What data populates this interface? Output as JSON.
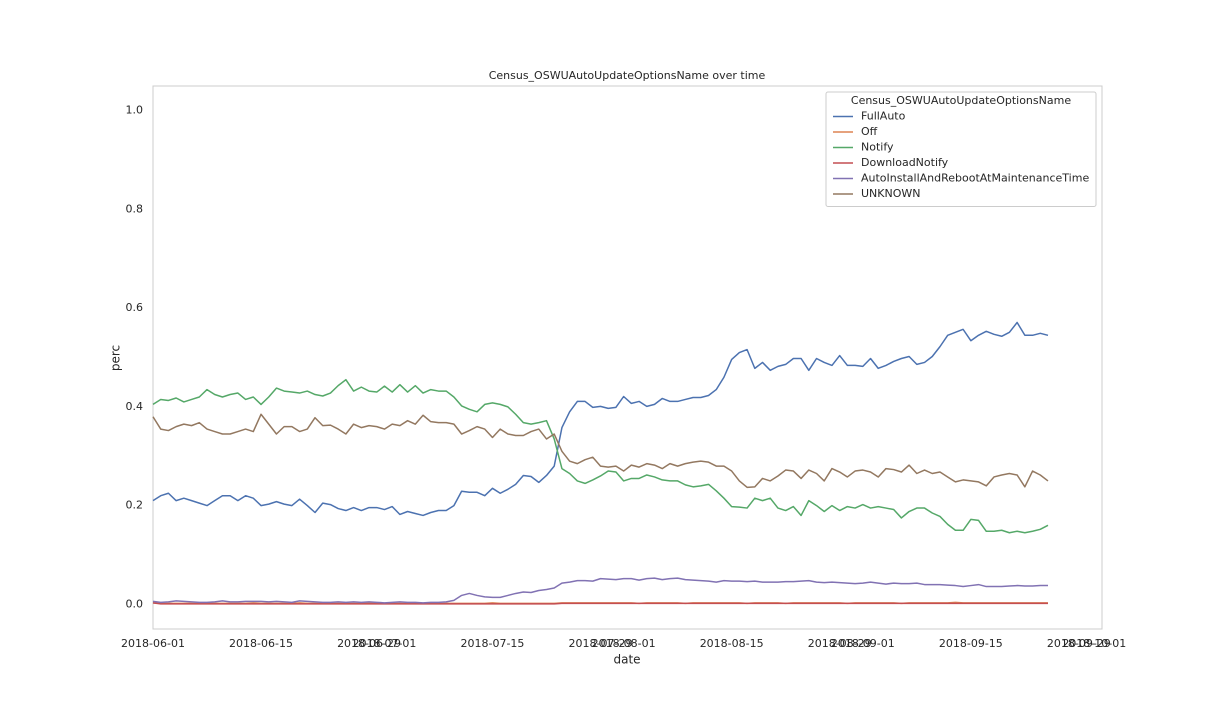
{
  "chart_data": {
    "type": "line",
    "title": "Census_OSWUAutoUpdateOptionsName over time",
    "x_label": "date",
    "y_label": "perc",
    "legend_title": "Census_OSWUAutoUpdateOptionsName",
    "legend_position": "upper right",
    "grid": false,
    "xlim": [
      "2018-06-01",
      "2018-10-02"
    ],
    "xticks": [
      "2018-06-01",
      "2018-06-15",
      "2018-06-29",
      "2018-07-01",
      "2018-07-15",
      "2018-07-29",
      "2018-08-01",
      "2018-08-15",
      "2018-08-29",
      "2018-09-01",
      "2018-09-15",
      "2018-09-29",
      "2018-10-01"
    ],
    "ylim": [
      -0.05,
      1.05
    ],
    "yticks": [
      {
        "value": 0,
        "label": "0.0"
      },
      0.2,
      0.4,
      0.6,
      0.8,
      {
        "value": 1,
        "label": "1.0"
      }
    ],
    "x": [
      "2018-06-01",
      "2018-06-02",
      "2018-06-03",
      "2018-06-04",
      "2018-06-05",
      "2018-06-06",
      "2018-06-07",
      "2018-06-08",
      "2018-06-09",
      "2018-06-10",
      "2018-06-11",
      "2018-06-12",
      "2018-06-13",
      "2018-06-14",
      "2018-06-15",
      "2018-06-16",
      "2018-06-17",
      "2018-06-18",
      "2018-06-19",
      "2018-06-20",
      "2018-06-21",
      "2018-06-22",
      "2018-06-23",
      "2018-06-24",
      "2018-06-25",
      "2018-06-26",
      "2018-06-27",
      "2018-06-28",
      "2018-06-29",
      "2018-06-30",
      "2018-07-01",
      "2018-07-02",
      "2018-07-03",
      "2018-07-04",
      "2018-07-05",
      "2018-07-06",
      "2018-07-07",
      "2018-07-08",
      "2018-07-09",
      "2018-07-10",
      "2018-07-11",
      "2018-07-12",
      "2018-07-13",
      "2018-07-14",
      "2018-07-15",
      "2018-07-16",
      "2018-07-17",
      "2018-07-18",
      "2018-07-19",
      "2018-07-20",
      "2018-07-21",
      "2018-07-22",
      "2018-07-23",
      "2018-07-24",
      "2018-07-25",
      "2018-07-26",
      "2018-07-27",
      "2018-07-28",
      "2018-07-29",
      "2018-07-30",
      "2018-07-31",
      "2018-08-01",
      "2018-08-02",
      "2018-08-03",
      "2018-08-04",
      "2018-08-05",
      "2018-08-06",
      "2018-08-07",
      "2018-08-08",
      "2018-08-09",
      "2018-08-10",
      "2018-08-11",
      "2018-08-12",
      "2018-08-13",
      "2018-08-14",
      "2018-08-15",
      "2018-08-16",
      "2018-08-17",
      "2018-08-18",
      "2018-08-19",
      "2018-08-20",
      "2018-08-21",
      "2018-08-22",
      "2018-08-23",
      "2018-08-24",
      "2018-08-25",
      "2018-08-26",
      "2018-08-27",
      "2018-08-28",
      "2018-08-29",
      "2018-08-30",
      "2018-08-31",
      "2018-09-01",
      "2018-09-02",
      "2018-09-03",
      "2018-09-04",
      "2018-09-05",
      "2018-09-06",
      "2018-09-07",
      "2018-09-08",
      "2018-09-09",
      "2018-09-10",
      "2018-09-11",
      "2018-09-12",
      "2018-09-13",
      "2018-09-14",
      "2018-09-15",
      "2018-09-16",
      "2018-09-17",
      "2018-09-18",
      "2018-09-19",
      "2018-09-20",
      "2018-09-21",
      "2018-09-22",
      "2018-09-23",
      "2018-09-24",
      "2018-09-25"
    ],
    "series": [
      {
        "name": "FullAuto",
        "color": "#4c72b0",
        "values": [
          0.21,
          0.22,
          0.225,
          0.21,
          0.215,
          0.21,
          0.205,
          0.2,
          0.21,
          0.22,
          0.22,
          0.21,
          0.22,
          0.215,
          0.2,
          0.203,
          0.208,
          0.203,
          0.2,
          0.213,
          0.2,
          0.186,
          0.205,
          0.202,
          0.194,
          0.19,
          0.196,
          0.19,
          0.196,
          0.196,
          0.192,
          0.198,
          0.182,
          0.188,
          0.184,
          0.18,
          0.186,
          0.19,
          0.19,
          0.2,
          0.229,
          0.227,
          0.227,
          0.22,
          0.235,
          0.225,
          0.233,
          0.243,
          0.261,
          0.259,
          0.247,
          0.261,
          0.28,
          0.358,
          0.39,
          0.411,
          0.411,
          0.399,
          0.401,
          0.397,
          0.399,
          0.421,
          0.407,
          0.411,
          0.401,
          0.405,
          0.417,
          0.411,
          0.411,
          0.415,
          0.419,
          0.419,
          0.423,
          0.435,
          0.46,
          0.496,
          0.51,
          0.516,
          0.478,
          0.49,
          0.474,
          0.482,
          0.486,
          0.498,
          0.498,
          0.474,
          0.498,
          0.49,
          0.484,
          0.504,
          0.484,
          0.484,
          0.482,
          0.498,
          0.478,
          0.484,
          0.492,
          0.498,
          0.502,
          0.486,
          0.49,
          0.502,
          0.522,
          0.545,
          0.551,
          0.557,
          0.534,
          0.545,
          0.553,
          0.547,
          0.543,
          0.551,
          0.571,
          0.545,
          0.545,
          0.549,
          0.545
        ]
      },
      {
        "name": "Off",
        "color": "#dd8452",
        "values": [
          0.003,
          0.002,
          0.002,
          0.002,
          0.002,
          0.002,
          0.002,
          0.003,
          0.002,
          0.002,
          0.002,
          0.002,
          0.002,
          0.003,
          0.002,
          0.002,
          0.002,
          0.002,
          0.002,
          0.003,
          0.002,
          0.002,
          0.002,
          0.002,
          0.002,
          0.002,
          0.002,
          0.002,
          0.003,
          0.002,
          0.002,
          0.002,
          0.002,
          0.002,
          0.002,
          0.002,
          0.002,
          0.002,
          0.002,
          0.002,
          0.002,
          0.002,
          0.002,
          0.002,
          0.003,
          0.002,
          0.002,
          0.002,
          0.002,
          0.002,
          0.002,
          0.002,
          0.002,
          0.003,
          0.003,
          0.003,
          0.003,
          0.003,
          0.003,
          0.003,
          0.003,
          0.003,
          0.003,
          0.002,
          0.003,
          0.003,
          0.003,
          0.003,
          0.003,
          0.002,
          0.003,
          0.003,
          0.003,
          0.003,
          0.003,
          0.003,
          0.003,
          0.002,
          0.003,
          0.003,
          0.003,
          0.003,
          0.002,
          0.003,
          0.003,
          0.003,
          0.003,
          0.003,
          0.003,
          0.003,
          0.002,
          0.003,
          0.003,
          0.003,
          0.003,
          0.003,
          0.003,
          0.002,
          0.003,
          0.003,
          0.003,
          0.003,
          0.003,
          0.003,
          0.004,
          0.003,
          0.003,
          0.003,
          0.003,
          0.003,
          0.003,
          0.003,
          0.003,
          0.003,
          0.003,
          0.003,
          0.003
        ]
      },
      {
        "name": "Notify",
        "color": "#55a868",
        "values": [
          0.405,
          0.415,
          0.413,
          0.418,
          0.41,
          0.415,
          0.42,
          0.435,
          0.425,
          0.42,
          0.425,
          0.428,
          0.415,
          0.42,
          0.405,
          0.42,
          0.438,
          0.432,
          0.43,
          0.428,
          0.432,
          0.425,
          0.422,
          0.428,
          0.443,
          0.455,
          0.432,
          0.44,
          0.432,
          0.43,
          0.442,
          0.43,
          0.445,
          0.43,
          0.443,
          0.428,
          0.435,
          0.432,
          0.432,
          0.42,
          0.402,
          0.395,
          0.39,
          0.405,
          0.408,
          0.405,
          0.4,
          0.385,
          0.368,
          0.365,
          0.368,
          0.372,
          0.335,
          0.275,
          0.265,
          0.25,
          0.245,
          0.252,
          0.26,
          0.27,
          0.268,
          0.25,
          0.255,
          0.255,
          0.262,
          0.258,
          0.252,
          0.25,
          0.25,
          0.242,
          0.238,
          0.24,
          0.243,
          0.23,
          0.215,
          0.198,
          0.197,
          0.195,
          0.215,
          0.21,
          0.215,
          0.195,
          0.19,
          0.198,
          0.18,
          0.21,
          0.2,
          0.188,
          0.2,
          0.19,
          0.198,
          0.195,
          0.202,
          0.195,
          0.198,
          0.195,
          0.192,
          0.175,
          0.188,
          0.195,
          0.195,
          0.185,
          0.178,
          0.162,
          0.15,
          0.15,
          0.172,
          0.17,
          0.148,
          0.148,
          0.15,
          0.145,
          0.148,
          0.145,
          0.148,
          0.152,
          0.16
        ]
      },
      {
        "name": "DownloadNotify",
        "color": "#c44e52",
        "values": [
          0.003,
          0.001,
          0.001,
          0.001,
          0.001,
          0.001,
          0.001,
          0.001,
          0.001,
          0.001,
          0.001,
          0.001,
          0.001,
          0.001,
          0.001,
          0.001,
          0.001,
          0.001,
          0.001,
          0.001,
          0.001,
          0.001,
          0.001,
          0.001,
          0.001,
          0.001,
          0.001,
          0.001,
          0.001,
          0.001,
          0.001,
          0.001,
          0.001,
          0.001,
          0.001,
          0.001,
          0.001,
          0.001,
          0.001,
          0.001,
          0.001,
          0.001,
          0.001,
          0.001,
          0.001,
          0.001,
          0.001,
          0.001,
          0.001,
          0.001,
          0.001,
          0.001,
          0.001,
          0.002,
          0.002,
          0.002,
          0.002,
          0.002,
          0.002,
          0.002,
          0.002,
          0.002,
          0.002,
          0.002,
          0.002,
          0.002,
          0.002,
          0.002,
          0.002,
          0.002,
          0.002,
          0.002,
          0.002,
          0.002,
          0.002,
          0.002,
          0.002,
          0.002,
          0.002,
          0.002,
          0.002,
          0.002,
          0.002,
          0.002,
          0.002,
          0.002,
          0.002,
          0.002,
          0.002,
          0.002,
          0.002,
          0.002,
          0.002,
          0.002,
          0.002,
          0.002,
          0.002,
          0.002,
          0.002,
          0.002,
          0.002,
          0.002,
          0.002,
          0.002,
          0.002,
          0.002,
          0.002,
          0.002,
          0.002,
          0.002,
          0.002,
          0.002,
          0.002,
          0.002,
          0.002,
          0.002,
          0.002
        ]
      },
      {
        "name": "AutoInstallAndRebootAtMaintenanceTime",
        "color": "#8172b3",
        "values": [
          0.006,
          0.004,
          0.005,
          0.007,
          0.006,
          0.005,
          0.004,
          0.004,
          0.005,
          0.007,
          0.005,
          0.005,
          0.006,
          0.006,
          0.006,
          0.005,
          0.006,
          0.005,
          0.004,
          0.007,
          0.006,
          0.005,
          0.004,
          0.004,
          0.005,
          0.004,
          0.005,
          0.004,
          0.005,
          0.004,
          0.003,
          0.004,
          0.005,
          0.004,
          0.004,
          0.003,
          0.004,
          0.004,
          0.005,
          0.008,
          0.018,
          0.022,
          0.018,
          0.015,
          0.014,
          0.014,
          0.018,
          0.022,
          0.025,
          0.024,
          0.028,
          0.03,
          0.033,
          0.043,
          0.045,
          0.048,
          0.048,
          0.047,
          0.052,
          0.051,
          0.05,
          0.052,
          0.052,
          0.049,
          0.052,
          0.053,
          0.05,
          0.052,
          0.053,
          0.05,
          0.049,
          0.048,
          0.047,
          0.045,
          0.048,
          0.047,
          0.047,
          0.046,
          0.047,
          0.045,
          0.045,
          0.045,
          0.046,
          0.046,
          0.047,
          0.048,
          0.045,
          0.044,
          0.045,
          0.044,
          0.043,
          0.042,
          0.043,
          0.045,
          0.043,
          0.041,
          0.043,
          0.042,
          0.042,
          0.043,
          0.04,
          0.04,
          0.04,
          0.039,
          0.038,
          0.036,
          0.038,
          0.04,
          0.036,
          0.036,
          0.036,
          0.037,
          0.038,
          0.037,
          0.037,
          0.038,
          0.038
        ]
      },
      {
        "name": "UNKNOWN",
        "color": "#937860",
        "values": [
          0.38,
          0.355,
          0.352,
          0.36,
          0.365,
          0.362,
          0.368,
          0.355,
          0.35,
          0.345,
          0.345,
          0.35,
          0.355,
          0.35,
          0.385,
          0.365,
          0.345,
          0.36,
          0.36,
          0.35,
          0.355,
          0.378,
          0.362,
          0.363,
          0.355,
          0.345,
          0.365,
          0.358,
          0.362,
          0.36,
          0.355,
          0.365,
          0.362,
          0.372,
          0.365,
          0.383,
          0.37,
          0.368,
          0.368,
          0.365,
          0.345,
          0.352,
          0.36,
          0.355,
          0.338,
          0.355,
          0.345,
          0.342,
          0.342,
          0.35,
          0.355,
          0.335,
          0.345,
          0.31,
          0.29,
          0.285,
          0.293,
          0.298,
          0.28,
          0.278,
          0.28,
          0.27,
          0.282,
          0.278,
          0.285,
          0.282,
          0.275,
          0.285,
          0.28,
          0.285,
          0.288,
          0.29,
          0.288,
          0.28,
          0.28,
          0.27,
          0.25,
          0.237,
          0.238,
          0.255,
          0.25,
          0.26,
          0.272,
          0.27,
          0.255,
          0.272,
          0.265,
          0.25,
          0.275,
          0.268,
          0.258,
          0.27,
          0.272,
          0.268,
          0.258,
          0.275,
          0.273,
          0.268,
          0.282,
          0.265,
          0.272,
          0.265,
          0.268,
          0.258,
          0.248,
          0.252,
          0.25,
          0.248,
          0.24,
          0.258,
          0.262,
          0.265,
          0.262,
          0.238,
          0.27,
          0.262,
          0.25
        ]
      }
    ]
  }
}
